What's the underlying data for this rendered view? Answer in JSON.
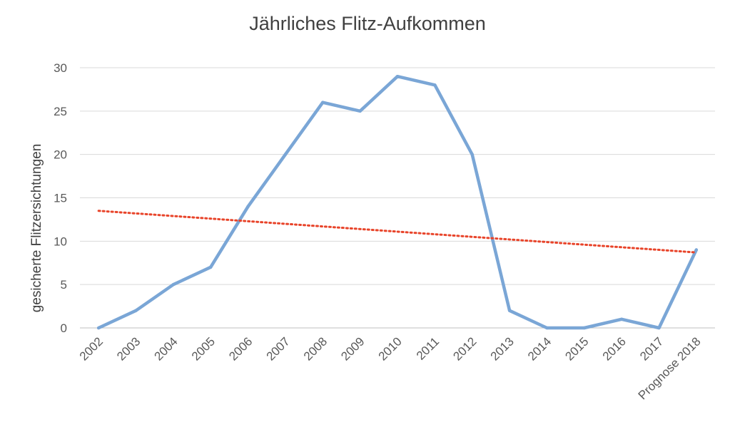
{
  "chart_data": {
    "type": "line",
    "title": "Jährliches Flitz-Aufkommen",
    "xlabel": "",
    "ylabel": "gesicherte Flitzersichtungen",
    "categories": [
      "2002",
      "2003",
      "2004",
      "2005",
      "2006",
      "2007",
      "2008",
      "2009",
      "2010",
      "2011",
      "2012",
      "2013",
      "2014",
      "2015",
      "2016",
      "2017",
      "Prognose 2018"
    ],
    "series": [
      {
        "values": [
          0,
          2,
          5,
          7,
          14,
          20,
          26,
          25,
          29,
          28,
          20,
          2,
          0,
          0,
          1,
          0,
          9
        ],
        "color": "#7aa6d6"
      }
    ],
    "trendline": {
      "type": "linear",
      "style": "dotted",
      "color": "#e8442a",
      "start": 13.5,
      "end": 8.7
    },
    "ylim": [
      0,
      30
    ],
    "yticks": [
      0,
      5,
      10,
      15,
      20,
      25,
      30
    ],
    "grid": true,
    "legend": "none"
  }
}
